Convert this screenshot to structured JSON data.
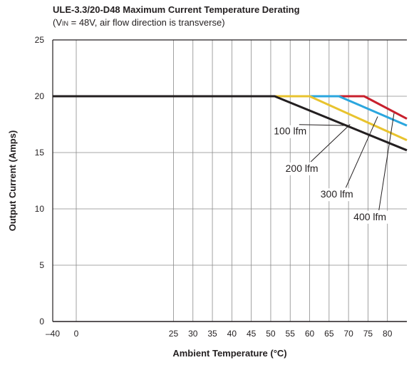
{
  "chart_data": {
    "type": "line",
    "title": "ULE-3.3/20-D48 Maximum Current Temperature Derating",
    "subtitle": {
      "prefix": "(V",
      "subscript": "IN",
      "suffix": " = 48V, air flow direction is transverse)"
    },
    "xlabel": "Ambient Temperature (°C)",
    "ylabel": "Output Current (Amps)",
    "xlim": [
      -40,
      85
    ],
    "ylim": [
      0,
      25
    ],
    "x_ticks": [
      -40,
      0,
      25,
      30,
      35,
      40,
      45,
      50,
      55,
      60,
      65,
      70,
      75,
      80
    ],
    "x_tick_labels": [
      "–40",
      "0",
      "25",
      "30",
      "35",
      "40",
      "45",
      "50",
      "55",
      "60",
      "65",
      "70",
      "75",
      "80"
    ],
    "y_ticks": [
      0,
      5,
      10,
      15,
      20,
      25
    ],
    "y_tick_labels": [
      "0",
      "5",
      "10",
      "15",
      "20",
      "25"
    ],
    "grid": true,
    "series": [
      {
        "name": "100 lfm",
        "color": "#231f20",
        "x": [
          -40,
          51,
          85
        ],
        "y": [
          20,
          20,
          15.2
        ]
      },
      {
        "name": "200 lfm",
        "color": "#e8c32e",
        "x": [
          -40,
          60,
          85
        ],
        "y": [
          20,
          20,
          16.1
        ]
      },
      {
        "name": "300 lfm",
        "color": "#2aa6de",
        "x": [
          -40,
          67.5,
          85
        ],
        "y": [
          20,
          20,
          17.4
        ]
      },
      {
        "name": "400 lfm",
        "color": "#c8202d",
        "x": [
          -40,
          74,
          85
        ],
        "y": [
          20,
          20,
          18.0
        ]
      }
    ],
    "annotations": [
      {
        "text": "100 lfm",
        "series": "100 lfm",
        "text_x": 55,
        "text_y": 16.6,
        "tip_x": 70,
        "tip_y": 17.4
      },
      {
        "text": "200 lfm",
        "series": "200 lfm",
        "text_x": 58,
        "text_y": 13.3,
        "tip_x": 70.4,
        "tip_y": 17.5
      },
      {
        "text": "300 lfm",
        "series": "300 lfm",
        "text_x": 67,
        "text_y": 11.0,
        "tip_x": 77.5,
        "tip_y": 18.2
      },
      {
        "text": "400 lfm",
        "series": "400 lfm",
        "text_x": 75.5,
        "text_y": 9.0,
        "tip_x": 81.7,
        "tip_y": 18.5
      }
    ]
  }
}
